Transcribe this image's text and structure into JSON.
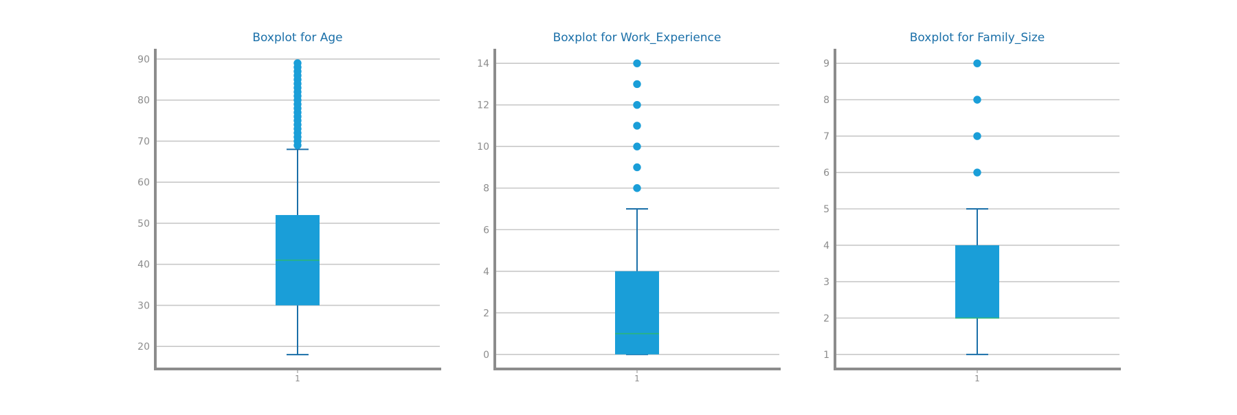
{
  "colors": {
    "title": "#1a6fa8",
    "box": "#1a9ed8",
    "whisker": "#1a6fa8",
    "median": "#2ab67a",
    "outlier": "#1a9ed8",
    "axis": "#8c8c8c",
    "grid": "#c8c8c8",
    "tick_label": "#8c8c8c"
  },
  "chart_data": [
    {
      "type": "box",
      "title": "Boxplot for Age",
      "categories": [
        "1"
      ],
      "yticks": [
        20,
        30,
        40,
        50,
        60,
        70,
        80,
        90
      ],
      "ylim": [
        14.5,
        92.5
      ],
      "grid": "horizontal",
      "box": {
        "whisker_low": 18,
        "q1": 30,
        "median": 41,
        "q3": 52,
        "whisker_high": 68
      },
      "outliers": [
        69,
        70,
        71,
        72,
        73,
        74,
        75,
        76,
        77,
        78,
        79,
        80,
        81,
        82,
        83,
        84,
        85,
        86,
        87,
        88,
        89
      ]
    },
    {
      "type": "box",
      "title": "Boxplot for Work_Experience",
      "categories": [
        "1"
      ],
      "yticks": [
        0,
        2,
        4,
        6,
        8,
        10,
        12,
        14
      ],
      "ylim": [
        -0.7,
        14.7
      ],
      "grid": "horizontal",
      "box": {
        "whisker_low": 0,
        "q1": 0,
        "median": 1,
        "q3": 4,
        "whisker_high": 7
      },
      "outliers": [
        8,
        9,
        10,
        11,
        12,
        13,
        14
      ]
    },
    {
      "type": "box",
      "title": "Boxplot for Family_Size",
      "categories": [
        "1"
      ],
      "yticks": [
        1,
        2,
        3,
        4,
        5,
        6,
        7,
        8,
        9
      ],
      "ylim": [
        0.6,
        9.4
      ],
      "grid": "horizontal",
      "box": {
        "whisker_low": 1,
        "q1": 2,
        "median": 2,
        "q3": 4,
        "whisker_high": 5
      },
      "outliers": [
        6,
        7,
        8,
        9
      ]
    }
  ]
}
